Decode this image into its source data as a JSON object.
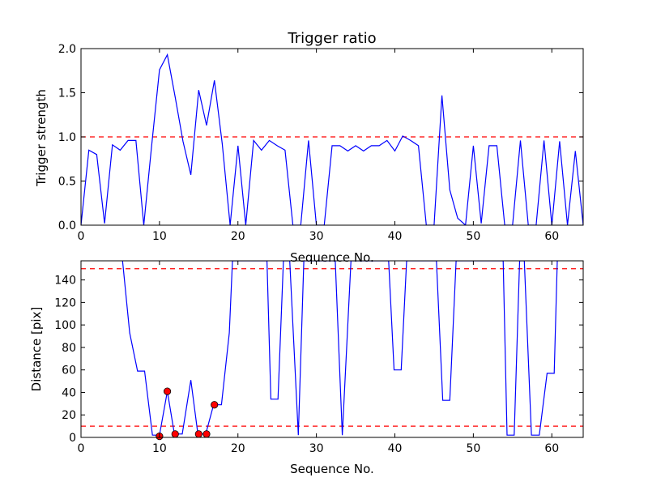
{
  "chart_data": [
    {
      "type": "line",
      "title": "Trigger ratio",
      "xlabel": "Sequence No.",
      "ylabel": "Trigger strength",
      "xlim": [
        0,
        64
      ],
      "ylim": [
        0,
        2.0
      ],
      "xticks": [
        0,
        10,
        20,
        30,
        40,
        50,
        60
      ],
      "yticks": [
        "0.0",
        "0.5",
        "1.0",
        "1.5",
        "2.0"
      ],
      "line_color": "#0000ff",
      "threshold_color": "#ff0000",
      "thresholds": [
        1.0
      ],
      "series": [
        {
          "x": [
            0,
            1,
            2,
            3,
            4,
            5,
            6,
            7,
            8,
            9,
            10,
            11,
            12,
            13,
            14,
            15,
            16,
            17,
            18,
            19,
            20,
            21,
            22,
            23,
            24,
            25,
            26,
            27,
            28,
            29,
            30,
            31,
            32,
            33,
            34,
            35,
            36,
            37,
            38,
            39,
            40,
            41,
            42,
            43,
            44,
            45,
            46,
            47,
            48,
            49,
            50,
            51,
            52,
            53,
            54,
            55,
            56,
            57,
            58,
            59,
            60,
            61,
            62,
            63,
            64
          ],
          "values": [
            0.0,
            0.85,
            0.8,
            0.02,
            0.91,
            0.85,
            0.96,
            0.96,
            0.0,
            0.9,
            1.76,
            1.93,
            1.45,
            0.95,
            0.57,
            1.53,
            1.13,
            1.64,
            0.92,
            0.0,
            0.9,
            0.0,
            0.96,
            0.85,
            0.96,
            0.9,
            0.85,
            0.0,
            0.0,
            0.96,
            0.0,
            0.0,
            0.9,
            0.9,
            0.84,
            0.9,
            0.84,
            0.9,
            0.9,
            0.96,
            0.84,
            1.01,
            0.96,
            0.9,
            0.0,
            0.0,
            1.47,
            0.4,
            0.08,
            0.0,
            0.9,
            0.02,
            0.9,
            0.9,
            0.0,
            0.0,
            0.96,
            0.0,
            0.0,
            0.96,
            0.0,
            0.95,
            0.0,
            0.84,
            0.0
          ]
        }
      ]
    },
    {
      "type": "line",
      "title": "",
      "xlabel": "Sequence No.",
      "ylabel": "Distance [pix]",
      "xlim": [
        0,
        64
      ],
      "ylim": [
        0,
        157
      ],
      "xticks": [
        0,
        10,
        20,
        30,
        40,
        50,
        60
      ],
      "yticks": [
        0,
        20,
        40,
        60,
        80,
        100,
        120,
        140
      ],
      "line_color": "#0000ff",
      "threshold_color": "#ff0000",
      "marker_color": "#ff0000",
      "thresholds": [
        10,
        150
      ],
      "series": [
        {
          "x": [
            5.3,
            6.2,
            7.2,
            8.1,
            9.1,
            10.0,
            11.0,
            11.9,
            12.9,
            14.0,
            14.9,
            15.9,
            16.9,
            17.9,
            18.9,
            19.3,
            23.7,
            24.2,
            25.1,
            25.8,
            26.6,
            27.7,
            28.4,
            32.4,
            33.3,
            34.4,
            39.2,
            39.9,
            40.8,
            41.5,
            45.3,
            46.1,
            47.0,
            47.8,
            53.8,
            54.3,
            55.2,
            55.9,
            56.5,
            57.4,
            58.4,
            59.4,
            60.3,
            60.7
          ],
          "values": [
            157,
            93,
            59,
            59,
            2,
            2,
            41,
            3,
            3,
            51,
            3,
            3,
            29,
            29,
            93,
            157,
            157,
            34,
            34,
            157,
            157,
            2,
            157,
            157,
            2,
            157,
            157,
            60,
            60,
            157,
            157,
            33,
            33,
            157,
            157,
            2,
            2,
            157,
            157,
            2,
            2,
            57,
            57,
            157
          ]
        },
        {
          "name": "",
          "marker": "circle",
          "x": [
            10.0,
            11.0,
            12.0,
            15.0,
            16.0,
            17.0
          ],
          "values": [
            1,
            41,
            3,
            3,
            3,
            29
          ]
        }
      ]
    }
  ]
}
